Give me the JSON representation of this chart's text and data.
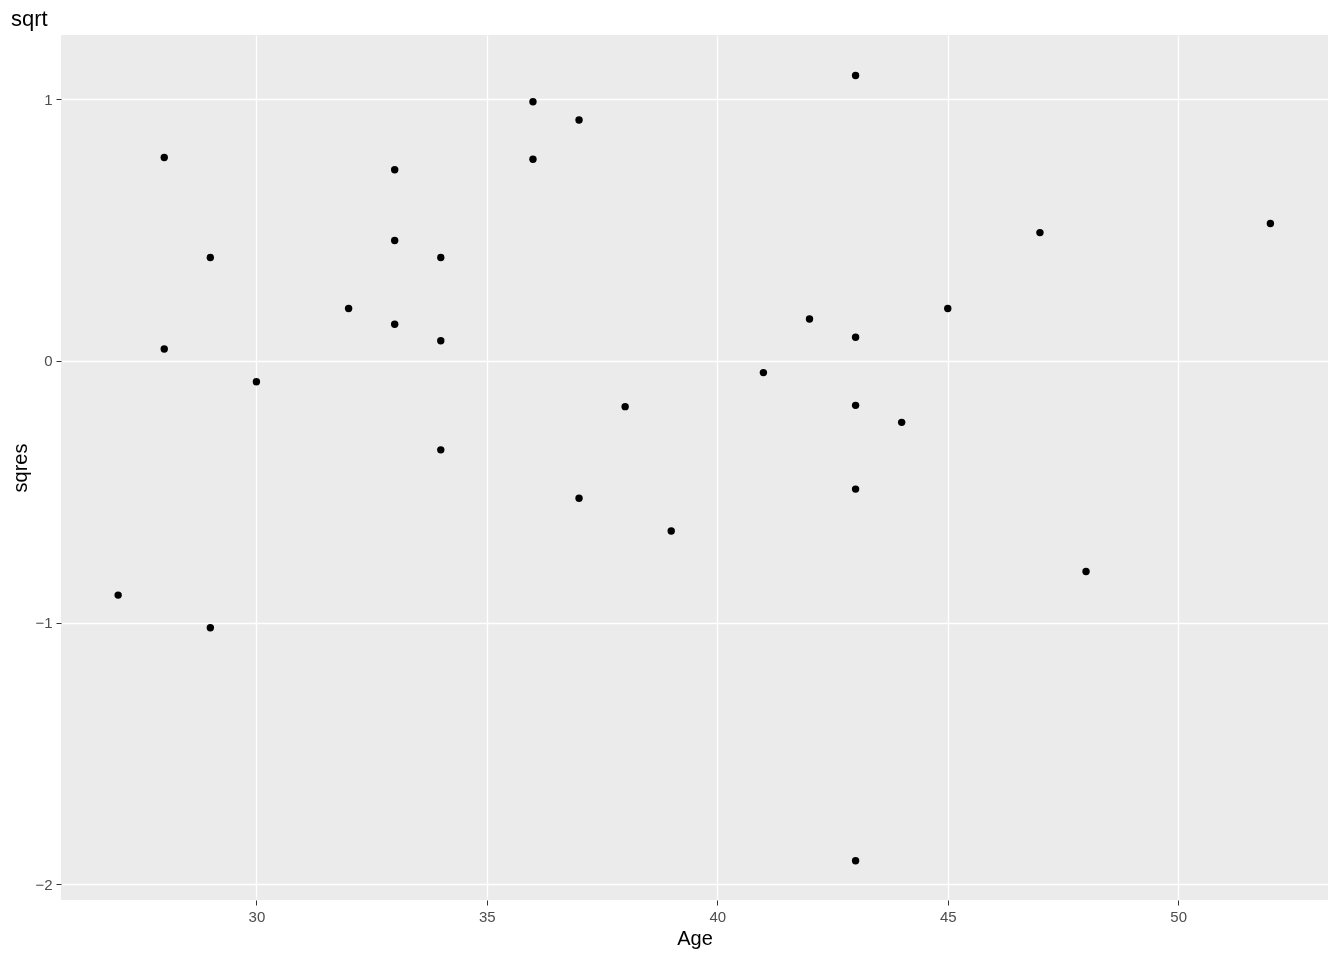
{
  "chart_data": {
    "type": "scatter",
    "title": "sqrt",
    "xlabel": "Age",
    "ylabel": "sqres",
    "x": [
      27,
      28,
      28,
      29,
      29,
      30,
      32,
      33,
      33,
      33,
      34,
      34,
      34,
      36,
      36,
      37,
      37,
      38,
      39,
      41,
      42,
      43,
      43,
      43,
      43,
      43,
      44,
      45,
      47,
      48,
      52
    ],
    "series": [
      {
        "color": "#000000",
        "values": [
          -0.895,
          0.777,
          0.045,
          0.395,
          -1.02,
          -0.08,
          0.2,
          0.73,
          0.46,
          0.14,
          0.395,
          0.077,
          -0.34,
          0.99,
          0.77,
          0.92,
          -0.525,
          -0.175,
          -0.65,
          -0.045,
          0.16,
          1.09,
          0.09,
          -0.17,
          -0.49,
          -1.91,
          -0.235,
          0.2,
          0.49,
          -0.805,
          0.525
        ]
      }
    ],
    "xlim": [
      25.76,
      53.25
    ],
    "ylim": [
      -2.06,
      1.245
    ],
    "xticks": [
      30,
      35,
      40,
      45,
      50
    ],
    "yticks": [
      -2,
      -1,
      0,
      1
    ],
    "grid": true,
    "marker": "circle",
    "legend": false
  }
}
